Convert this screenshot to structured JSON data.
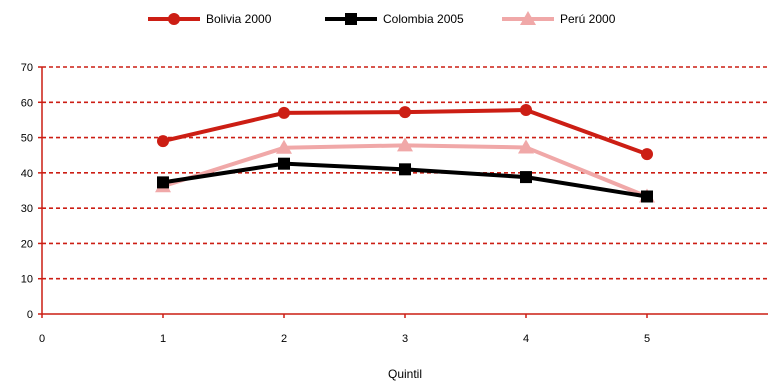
{
  "chart_data": {
    "type": "line",
    "title": "",
    "xlabel": "Quintil",
    "ylabel": "",
    "x": [
      1,
      2,
      3,
      4,
      5
    ],
    "x_ticks": [
      "0",
      "1",
      "2",
      "3",
      "4",
      "5"
    ],
    "xlim": [
      0,
      6
    ],
    "y_ticks": [
      "0",
      "10",
      "20",
      "30",
      "40",
      "50",
      "60",
      "70"
    ],
    "ylim": [
      0,
      70
    ],
    "grid": true,
    "legend_position": "top",
    "series": [
      {
        "name": "Bolivia 2000",
        "values": [
          49.0,
          57.0,
          57.2,
          57.8,
          45.3
        ],
        "color": "#cc1e14",
        "marker": "circle"
      },
      {
        "name": "Colombia 2005",
        "values": [
          37.3,
          42.6,
          41.0,
          38.8,
          33.3
        ],
        "color": "#000000",
        "marker": "square"
      },
      {
        "name": "Perú 2000",
        "values": [
          36.2,
          47.1,
          47.8,
          47.2,
          33.3
        ],
        "color": "#f0a8a8",
        "marker": "triangle"
      }
    ]
  }
}
